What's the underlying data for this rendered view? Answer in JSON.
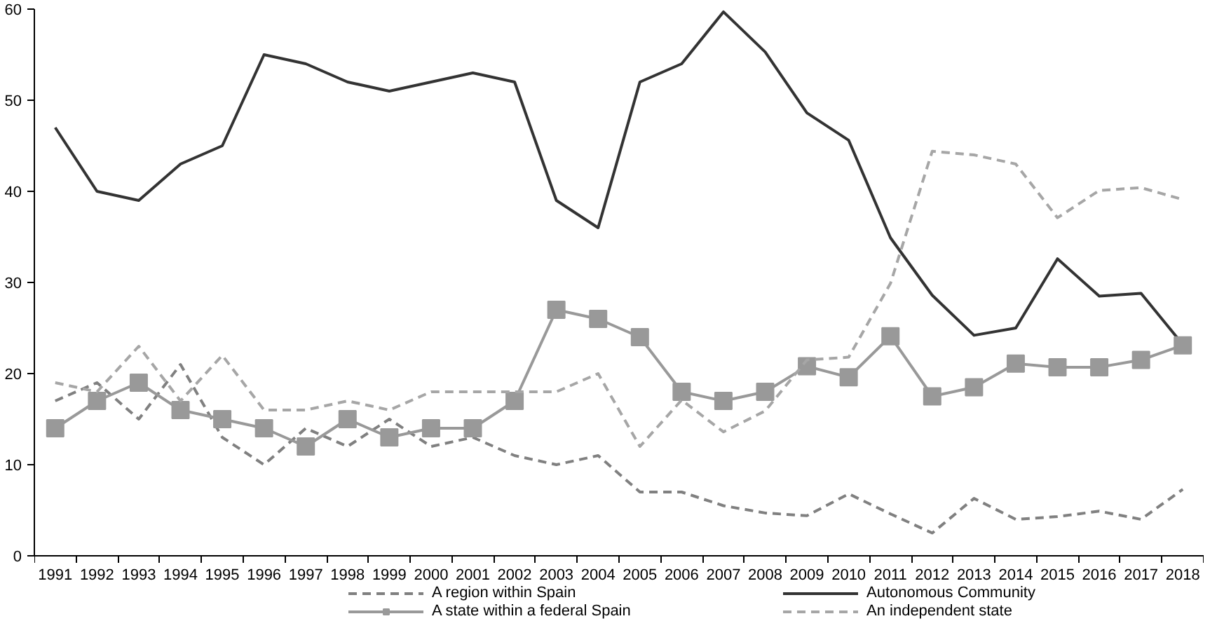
{
  "chart_data": {
    "type": "line",
    "categories": [
      "1991",
      "1992",
      "1993",
      "1994",
      "1995",
      "1996",
      "1997",
      "1998",
      "1999",
      "2000",
      "2001",
      "2002",
      "2003",
      "2004",
      "2005",
      "2006",
      "2007",
      "2008",
      "2009",
      "2010",
      "2011",
      "2012",
      "2013",
      "2014",
      "2015",
      "2016",
      "2017",
      "2018"
    ],
    "series": [
      {
        "name": "A region within Spain",
        "color": "#808080",
        "line_style": "dashed",
        "marker": "none",
        "values": [
          17,
          19,
          15,
          21,
          13,
          10,
          14,
          12,
          15,
          12,
          13,
          11,
          10,
          11,
          7,
          7,
          5.5,
          4.7,
          4.4,
          6.8,
          4.6,
          2.5,
          6.3,
          4.0,
          4.3,
          4.9,
          4.0,
          7.3
        ]
      },
      {
        "name": "Autonomous Community",
        "color": "#333333",
        "line_style": "solid",
        "marker": "none",
        "values": [
          47,
          40,
          39,
          43,
          45,
          55,
          54,
          52,
          51,
          52,
          53,
          52,
          39,
          36,
          52,
          54,
          59.7,
          55.3,
          48.6,
          45.6,
          34.9,
          28.6,
          24.2,
          25.0,
          32.6,
          28.5,
          28.8,
          23.2
        ]
      },
      {
        "name": "A state within a federal Spain",
        "color": "#999999",
        "line_style": "solid",
        "marker": "square",
        "values": [
          14,
          17,
          19,
          16,
          15,
          14,
          12,
          15,
          13,
          14,
          14,
          17,
          27,
          26,
          24,
          18,
          17,
          18,
          20.8,
          19.6,
          24.1,
          17.5,
          18.5,
          21.1,
          20.7,
          20.7,
          21.5,
          23.1
        ]
      },
      {
        "name": "An independent state",
        "color": "#a6a6a6",
        "line_style": "dashed",
        "marker": "none",
        "values": [
          19,
          18,
          23,
          17,
          22,
          16,
          16,
          17,
          16,
          18,
          18,
          18,
          18,
          20,
          12,
          17.1,
          13.6,
          15.9,
          21.5,
          21.8,
          29.9,
          44.4,
          44.0,
          43.0,
          37.1,
          40.1,
          40.4,
          39.1
        ]
      }
    ],
    "ylim": [
      0,
      60
    ],
    "yticks": [
      0,
      10,
      20,
      30,
      40,
      50,
      60
    ],
    "grid": false,
    "legend": "bottom"
  }
}
